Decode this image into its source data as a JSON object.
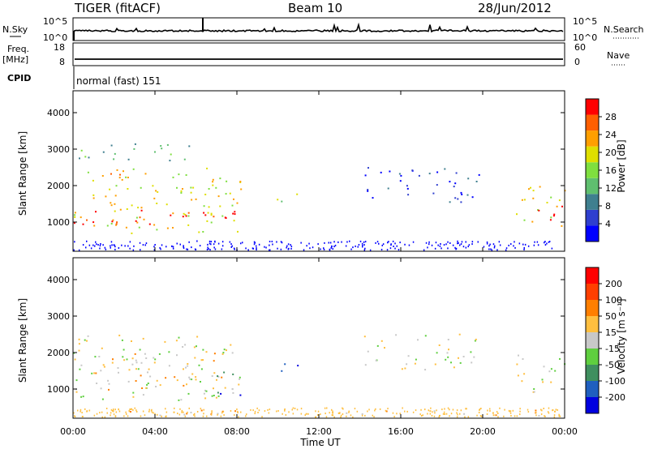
{
  "header": {
    "station": "TIGER (fitACF)",
    "beam": "Beam 10",
    "date": "28/Jun/2012"
  },
  "ancillary": {
    "nsky_label": "N.Sky",
    "nsearch_label": "N.Search",
    "nsky_ticks": [
      "10^5",
      "10^0"
    ],
    "freq_label": "Freq.",
    "freq_unit": "[MHz]",
    "freq_ticks": [
      "18",
      "8"
    ],
    "nave_label": "Nave",
    "nave_ticks": [
      "60",
      "0"
    ],
    "cpid_label": "CPID",
    "cpid_value": "normal (fast) 151"
  },
  "colors": {
    "power_scale": [
      "#0000ff",
      "#2f3fcf",
      "#3f7f8f",
      "#5fbf6f",
      "#7fdf3f",
      "#dfdf00",
      "#ff9f00",
      "#ff5f00",
      "#ff0000"
    ],
    "velocity_scale": [
      "#0000e0",
      "#1f5fbf",
      "#3f8f5f",
      "#5fcf3f",
      "#c8c8c8",
      "#ffbf3f",
      "#ff7f00",
      "#ff3f00",
      "#ff0000"
    ]
  },
  "chart_data": [
    {
      "type": "heatmap",
      "panel": "power",
      "ylabel": "Slant Range [km]",
      "ylim": [
        200,
        4600
      ],
      "yticks": [
        "1000",
        "2000",
        "3000",
        "4000"
      ],
      "xlim_hours": [
        0,
        24
      ],
      "colorbar_label": "Power [dB]",
      "colorbar_ticks": [
        "28",
        "24",
        "20",
        "16",
        "12",
        "8",
        "4"
      ],
      "scatter_regions": [
        {
          "t0": 0.0,
          "t1": 8.2,
          "r0": 700,
          "r1": 2500,
          "level": 5
        },
        {
          "t0": 0.0,
          "t1": 8.0,
          "r0": 950,
          "r1": 1400,
          "level": 8
        },
        {
          "t0": 0.2,
          "t1": 6.0,
          "r0": 2700,
          "r1": 3200,
          "level": 3
        },
        {
          "t0": 1.0,
          "t1": 3.6,
          "r0": 2200,
          "r1": 2500,
          "level": 6
        },
        {
          "t0": 9.8,
          "t1": 11.0,
          "r0": 1400,
          "r1": 1800,
          "level": 4
        },
        {
          "t0": 14.2,
          "t1": 19.8,
          "r0": 1550,
          "r1": 2550,
          "level": 1
        },
        {
          "t0": 21.6,
          "t1": 24.0,
          "r0": 900,
          "r1": 2000,
          "level": 5
        },
        {
          "t0": 22.5,
          "t1": 24.0,
          "r0": 1000,
          "r1": 1500,
          "level": 8
        }
      ]
    },
    {
      "type": "heatmap",
      "panel": "velocity",
      "ylabel": "Slant Range [km]",
      "ylim": [
        200,
        4600
      ],
      "yticks": [
        "1000",
        "2000",
        "3000",
        "4000"
      ],
      "xlim_hours": [
        0,
        24
      ],
      "xticks": [
        "00:00",
        "04:00",
        "08:00",
        "12:00",
        "16:00",
        "20:00",
        "00:00"
      ],
      "xlabel": "Time UT",
      "colorbar_label": "Velocity [m s⁻¹]",
      "colorbar_ticks": [
        "200",
        "100",
        "50",
        "15",
        "-15",
        "-50",
        "-100",
        "-200"
      ],
      "scatter_regions": [
        {
          "t0": 0.0,
          "t1": 8.2,
          "r0": 700,
          "r1": 2500,
          "level": 4
        },
        {
          "t0": 1.0,
          "t1": 7.5,
          "r0": 1000,
          "r1": 2000,
          "level": 5
        },
        {
          "t0": 7.0,
          "t1": 8.2,
          "r0": 800,
          "r1": 1500,
          "level": 1
        },
        {
          "t0": 9.8,
          "t1": 11.0,
          "r0": 1400,
          "r1": 1800,
          "level": 0
        },
        {
          "t0": 14.2,
          "t1": 19.8,
          "r0": 1550,
          "r1": 2550,
          "level": 4
        },
        {
          "t0": 21.6,
          "t1": 24.0,
          "r0": 900,
          "r1": 2000,
          "level": 4
        },
        {
          "t0": 0.0,
          "t1": 24.0,
          "r0": 250,
          "r1": 450,
          "level": 5
        }
      ]
    }
  ]
}
